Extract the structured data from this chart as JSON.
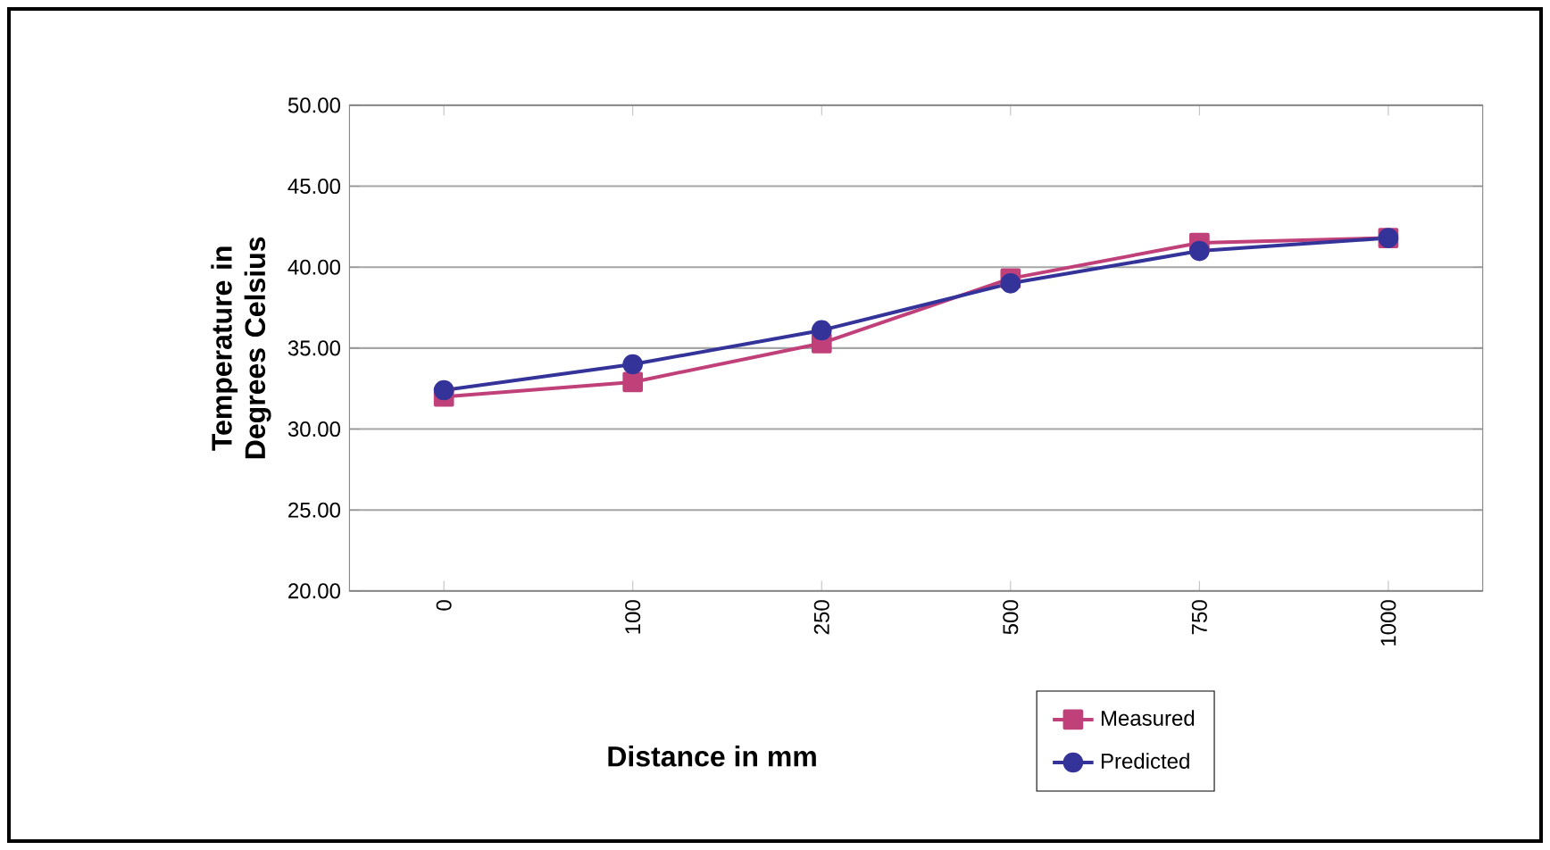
{
  "chart_data": {
    "type": "line",
    "xlabel": "Distance in mm",
    "ylabel": "Temperature in Degrees Celsius",
    "categories": [
      "0",
      "100",
      "250",
      "500",
      "750",
      "1000"
    ],
    "series": [
      {
        "name": "Measured",
        "color": "#c0407a",
        "marker": "square",
        "values": [
          32.0,
          32.9,
          35.3,
          39.3,
          41.5,
          41.8
        ]
      },
      {
        "name": "Predicted",
        "color": "#333399",
        "marker": "circle",
        "values": [
          32.4,
          34.0,
          36.1,
          39.0,
          41.0,
          41.8
        ]
      }
    ],
    "ylim": [
      20,
      50
    ],
    "yticks": [
      {
        "value": 20,
        "label": "20.00"
      },
      {
        "value": 25,
        "label": "25.00"
      },
      {
        "value": 30,
        "label": "30.00"
      },
      {
        "value": 35,
        "label": "35.00"
      },
      {
        "value": 40,
        "label": "40.00"
      },
      {
        "value": 45,
        "label": "45.00"
      },
      {
        "value": 50,
        "label": "50.00"
      }
    ],
    "grid": "y",
    "legend": "bottom right",
    "line_style": "solid"
  }
}
